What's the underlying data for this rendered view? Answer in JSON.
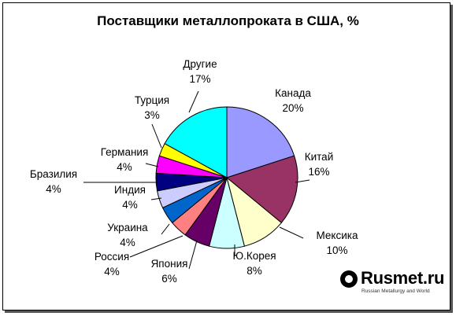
{
  "chart_data": {
    "type": "pie",
    "title": "Поставщики металлопроката в США, %",
    "start_angle_deg": 0,
    "direction": "clockwise",
    "slices": [
      {
        "label": "Канада",
        "value": 20,
        "value_text": "20%",
        "color": "#9999ff"
      },
      {
        "label": "Китай",
        "value": 16,
        "value_text": "16%",
        "color": "#993366"
      },
      {
        "label": "Мексика",
        "value": 10,
        "value_text": "10%",
        "color": "#ffffcc"
      },
      {
        "label": "Ю.Корея",
        "value": 8,
        "value_text": "8%",
        "color": "#ccffff"
      },
      {
        "label": "Япония",
        "value": 6,
        "value_text": "6%",
        "color": "#660066"
      },
      {
        "label": "Россия",
        "value": 4,
        "value_text": "4%",
        "color": "#ff8080"
      },
      {
        "label": "Украина",
        "value": 4,
        "value_text": "4%",
        "color": "#0066cc"
      },
      {
        "label": "Индия",
        "value": 4,
        "value_text": "4%",
        "color": "#ccccff"
      },
      {
        "label": "Бразилия",
        "value": 4,
        "value_text": "4%",
        "color": "#000080"
      },
      {
        "label": "Германия",
        "value": 4,
        "value_text": "4%",
        "color": "#ff00ff"
      },
      {
        "label": "Турция",
        "value": 3,
        "value_text": "3%",
        "color": "#ffff00"
      },
      {
        "label": "Другие",
        "value": 17,
        "value_text": "17%",
        "color": "#00ffff"
      }
    ]
  },
  "logo": {
    "name": "Rusmet.ru",
    "tagline": "Russian Metallurgy and World"
  }
}
